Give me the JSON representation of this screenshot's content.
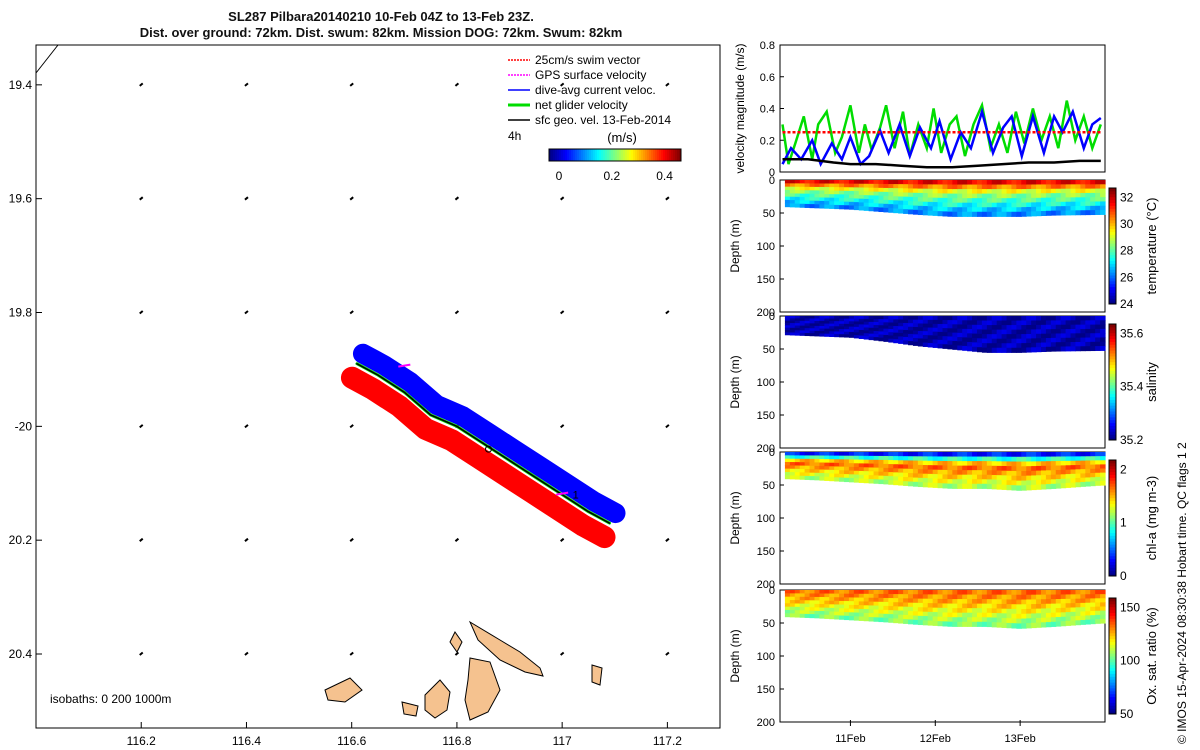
{
  "title": {
    "line1": "SL287 Pilbara20140210 10-Feb 04Z to 13-Feb 23Z.",
    "line2": "Dist. over ground: 72km. Dist. swum: 82km. Mission DOG: 72km. Swum: 82km"
  },
  "footer_credit": "© IMOS 15-Apr-2024 08:30:38 Hobart time. QC flags 1  2",
  "colors": {
    "swim": "#ff0000",
    "gps": "#ff00ff",
    "current": "#0000ff",
    "net": "#00dd00",
    "geo": "#000000",
    "land": "#f5c28f"
  },
  "chart_data": [
    {
      "type": "scatter",
      "panel": "map",
      "xlim": [
        116.0,
        117.3
      ],
      "ylim": [
        -20.53,
        -19.33
      ],
      "x_ticks": [
        116.2,
        116.4,
        116.6,
        116.8,
        117.0,
        117.2
      ],
      "x_tick_labels": [
        "116.2",
        "116.4",
        "116.6",
        "116.8",
        "117",
        "117.2"
      ],
      "y_ticks": [
        -19.4,
        -19.6,
        -19.8,
        -20.0,
        -20.2,
        -20.4
      ],
      "y_tick_labels": [
        "19.4",
        "19.6",
        "19.8",
        "-20",
        "20.2",
        "20.4"
      ],
      "legend": [
        "25cm/s swim vector",
        "GPS surface velocity",
        "dive-avg current veloc.",
        "net glider velocity",
        "sfc geo. vel. 13-Feb-2014"
      ],
      "legend_note": "4h",
      "colorbar": {
        "label": "(m/s)",
        "ticks": [
          "0",
          "0.2",
          "0.4"
        ],
        "range": [
          0,
          0.5
        ]
      },
      "isobaths_note": "isobaths: 0   200  1000m",
      "track_label": "1",
      "track": {
        "lon": [
          116.61,
          116.65,
          116.7,
          116.75,
          116.8,
          116.85,
          116.9,
          116.95,
          117.0,
          117.05,
          117.09
        ],
        "lat": [
          -19.89,
          -19.91,
          -19.94,
          -19.98,
          -20.0,
          -20.03,
          -20.06,
          -20.09,
          -20.12,
          -20.15,
          -20.17
        ]
      },
      "geo_vector_grid": {
        "lon": [
          116.2,
          116.4,
          116.6,
          116.8,
          117.0,
          117.2
        ],
        "lat": [
          -19.4,
          -19.6,
          -19.8,
          -20.0,
          -20.2,
          -20.4
        ]
      }
    },
    {
      "type": "line",
      "panel": "velocity",
      "ylabel": "velocity magnitude (m/s)",
      "ylim": [
        0,
        0.8
      ],
      "y_ticks": [
        "0",
        "0.2",
        "0.4",
        "0.6",
        "0.8"
      ],
      "x_tick_labels": [
        "11Feb",
        "12Feb",
        "13Feb"
      ],
      "x_ticks_day": [
        11,
        12,
        13
      ],
      "xlim_day": [
        10.17,
        14.0
      ],
      "series": [
        {
          "color": "#00dd00",
          "day": [
            10.2,
            10.27,
            10.35,
            10.45,
            10.55,
            10.62,
            10.72,
            10.82,
            10.9,
            11.0,
            11.1,
            11.17,
            11.25,
            11.35,
            11.42,
            11.52,
            11.62,
            11.7,
            11.8,
            11.9,
            11.98,
            12.07,
            12.17,
            12.25,
            12.35,
            12.45,
            12.55,
            12.65,
            12.75,
            12.85,
            12.95,
            13.05,
            13.15,
            13.25,
            13.35,
            13.45,
            13.55,
            13.65,
            13.75,
            13.85,
            13.95
          ],
          "values": [
            0.3,
            0.05,
            0.18,
            0.35,
            0.08,
            0.3,
            0.38,
            0.12,
            0.22,
            0.42,
            0.12,
            0.3,
            0.14,
            0.28,
            0.42,
            0.15,
            0.38,
            0.1,
            0.3,
            0.15,
            0.4,
            0.12,
            0.3,
            0.35,
            0.1,
            0.3,
            0.42,
            0.15,
            0.3,
            0.12,
            0.38,
            0.18,
            0.4,
            0.2,
            0.35,
            0.15,
            0.45,
            0.2,
            0.35,
            0.15,
            0.3
          ]
        },
        {
          "color": "#0000ff",
          "day": [
            10.2,
            10.3,
            10.42,
            10.55,
            10.65,
            10.78,
            10.9,
            11.0,
            11.12,
            11.22,
            11.35,
            11.45,
            11.58,
            11.7,
            11.82,
            11.95,
            12.05,
            12.18,
            12.3,
            12.42,
            12.55,
            12.68,
            12.8,
            12.9,
            13.02,
            13.15,
            13.28,
            13.4,
            13.5,
            13.62,
            13.75,
            13.85,
            13.95
          ],
          "values": [
            0.05,
            0.15,
            0.08,
            0.2,
            0.05,
            0.18,
            0.08,
            0.22,
            0.05,
            0.1,
            0.26,
            0.12,
            0.3,
            0.1,
            0.28,
            0.15,
            0.32,
            0.08,
            0.25,
            0.15,
            0.38,
            0.12,
            0.28,
            0.35,
            0.1,
            0.35,
            0.12,
            0.35,
            0.25,
            0.38,
            0.15,
            0.3,
            0.34
          ]
        },
        {
          "color": "#000000",
          "day": [
            10.2,
            10.5,
            10.8,
            11.0,
            11.3,
            11.6,
            11.9,
            12.2,
            12.5,
            12.8,
            13.1,
            13.4,
            13.7,
            13.95
          ],
          "values": [
            0.08,
            0.08,
            0.06,
            0.05,
            0.05,
            0.04,
            0.03,
            0.03,
            0.04,
            0.05,
            0.06,
            0.06,
            0.07,
            0.07
          ]
        },
        {
          "color": "#ff0000",
          "day": [
            10.2,
            13.95
          ],
          "values": [
            0.25,
            0.25
          ]
        }
      ]
    },
    {
      "type": "heatmap",
      "panel": "temperature",
      "ylabel": "Depth (m)",
      "colorbar_label": "temperature (°C)",
      "ylim": [
        200,
        0
      ],
      "y_ticks": [
        "0",
        "50",
        "100",
        "150",
        "200"
      ],
      "colorbar_ticks": [
        "24",
        "26",
        "28",
        "30",
        "32"
      ],
      "range": [
        23.2,
        32.0
      ],
      "day": [
        10.2,
        10.6,
        11.0,
        11.4,
        11.8,
        12.2,
        12.6,
        13.0,
        13.4,
        13.95
      ],
      "depth_max": [
        40,
        42,
        44,
        48,
        52,
        55,
        55,
        55,
        53,
        52
      ],
      "surface_value": 31.0,
      "mid_value": 28.0,
      "deep_value": 25.5
    },
    {
      "type": "heatmap",
      "panel": "salinity",
      "ylabel": "Depth (m)",
      "colorbar_label": "salinity",
      "ylim": [
        200,
        0
      ],
      "y_ticks": [
        "0",
        "50",
        "100",
        "150",
        "200"
      ],
      "colorbar_ticks": [
        "35.2",
        "35.4",
        "35.6"
      ],
      "range": [
        35.05,
        35.75
      ],
      "day": [
        10.2,
        10.6,
        11.0,
        11.4,
        11.8,
        12.2,
        12.6,
        13.0,
        13.4,
        13.95
      ],
      "depth_max": [
        28,
        30,
        32,
        38,
        45,
        50,
        55,
        55,
        53,
        52
      ],
      "surface_value": 35.08,
      "mid_value": 35.08,
      "deep_value": 35.08
    },
    {
      "type": "heatmap",
      "panel": "chl-a",
      "ylabel": "Depth (m)",
      "colorbar_label": "chl-a (mg m-3)",
      "ylim": [
        200,
        0
      ],
      "y_ticks": [
        "0",
        "50",
        "100",
        "150",
        "200"
      ],
      "colorbar_ticks": [
        "0",
        "1",
        "2"
      ],
      "range": [
        0,
        2
      ],
      "day": [
        10.2,
        10.6,
        11.0,
        11.4,
        11.8,
        12.2,
        12.6,
        13.0,
        13.4,
        13.95
      ],
      "depth_max": [
        40,
        42,
        45,
        48,
        52,
        55,
        55,
        58,
        55,
        50
      ],
      "surface_value": 0.3,
      "mid_value": 1.6,
      "deep_value": 1.1
    },
    {
      "type": "heatmap",
      "panel": "oxygen",
      "ylabel": "Depth (m)",
      "colorbar_label": "Ox. sat. ratio (%)",
      "ylim": [
        200,
        0
      ],
      "y_ticks": [
        "0",
        "50",
        "100",
        "150",
        "200"
      ],
      "colorbar_ticks": [
        "50",
        "100",
        "150"
      ],
      "range": [
        25,
        175
      ],
      "day": [
        10.2,
        10.6,
        11.0,
        11.4,
        11.8,
        12.2,
        12.6,
        13.0,
        13.4,
        13.95
      ],
      "depth_max": [
        40,
        42,
        45,
        48,
        52,
        55,
        55,
        58,
        55,
        50
      ],
      "surface_value": 140,
      "mid_value": 128,
      "deep_value": 100
    }
  ]
}
